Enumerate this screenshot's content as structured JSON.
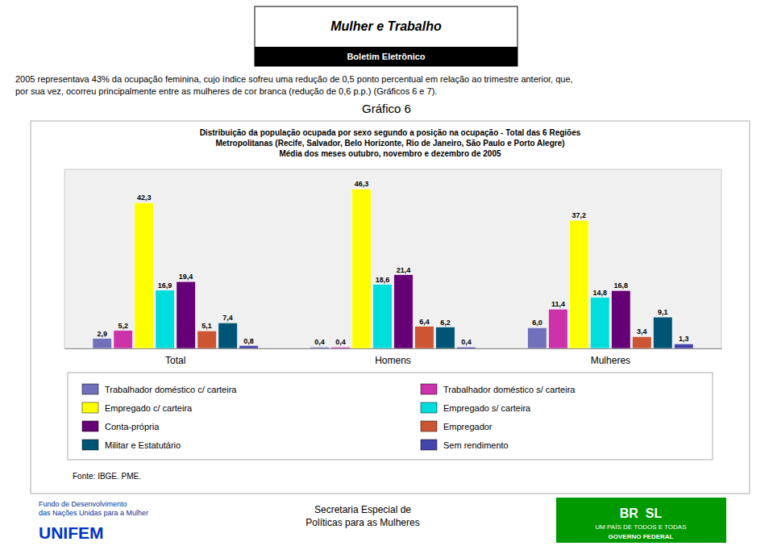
{
  "chart_data": {
    "type": "bar",
    "title": "Gráfico 6",
    "subtitle": [
      "Distribuição da população ocupada por sexo segundo a posição na ocupação - Total das 6 Regiões",
      "Metropolitanas (Recife, Salvador, Belo Horizonte, Rio de Janeiro, São Paulo e Porto Alegre)",
      "Média dos meses outubro, novembro e dezembro de 2005"
    ],
    "annotations": [
      "Mulher e Trabalho",
      "Boletim Eletrônico",
      "2005 representava 43% da ocupação feminina, cujo índice sofreu uma redução de 0,5 ponto percentual em relação ao trimestre anterior, que,",
      "por sua vez, ocorreu principalmente entre as mulheres de cor branca (redução de 0,6 p.p.) (Gráficos 6 e 7).",
      "Fonte: IBGE. PME.",
      "Fundo de Desenvolvimento",
      "das Nações Unidas para a Mulher",
      "UNIFEM",
      "Secretaria Especial de",
      "Políticas para as Mulheres",
      "BR  SL",
      "UM PAÍS DE TODOS E TODAS",
      "GOVERNO FEDERAL"
    ],
    "categories": [
      "Total",
      "Homens",
      "Mulheres"
    ],
    "series": [
      {
        "name": "Trabalhador doméstico c/ carteira",
        "color": "#7070bb",
        "values": [
          2.9,
          0.4,
          6.0
        ],
        "value_labels": [
          "2,9",
          "0,4",
          "6,0"
        ]
      },
      {
        "name": "Trabalhador doméstico s/ carteira",
        "color": "#cc33aa",
        "values": [
          5.2,
          0.4,
          11.4
        ],
        "value_labels": [
          "5,2",
          "0,4",
          "11,4"
        ]
      },
      {
        "name": "Empregado c/ carteira",
        "color": "#ffff00",
        "values": [
          42.3,
          46.3,
          37.2
        ],
        "value_labels": [
          "42,3",
          "46,3",
          "37,2"
        ]
      },
      {
        "name": "Empregado s/ carteira",
        "color": "#00dddd",
        "values": [
          16.9,
          18.6,
          14.8
        ],
        "value_labels": [
          "16,9",
          "18,6",
          "14,8"
        ]
      },
      {
        "name": "Conta-própria",
        "color": "#660077",
        "values": [
          19.4,
          21.4,
          16.8
        ],
        "value_labels": [
          "19,4",
          "21,4",
          "16,8"
        ]
      },
      {
        "name": "Empregador",
        "color": "#cc5533",
        "values": [
          5.1,
          6.4,
          3.4
        ],
        "value_labels": [
          "5,1",
          "6,4",
          "3,4"
        ]
      },
      {
        "name": "Militar e Estatutário",
        "color": "#005577",
        "values": [
          7.4,
          6.2,
          9.1
        ],
        "value_labels": [
          "7,4",
          "6,2",
          "9,1"
        ]
      },
      {
        "name": "Sem rendimento",
        "color": "#4444aa",
        "values": [
          0.8,
          0.4,
          1.3
        ],
        "value_labels": [
          "0,8",
          "0,4",
          "1,3"
        ]
      }
    ],
    "ylim": [
      0,
      52
    ],
    "grid": false,
    "legend": "bottom",
    "data_labels": true,
    "tick_labels": "x"
  }
}
